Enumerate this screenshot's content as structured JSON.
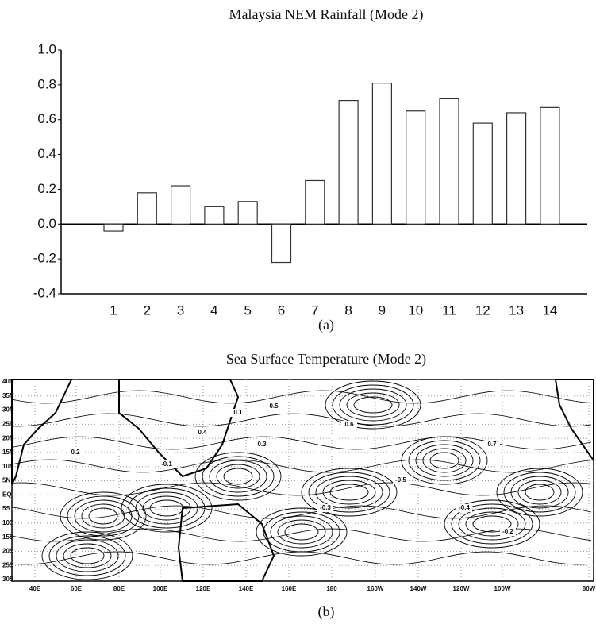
{
  "chart_data": {
    "type": "bar",
    "title": "Malaysia NEM Rainfall (Mode 2)",
    "caption": "(a)",
    "categories": [
      "1",
      "2",
      "3",
      "4",
      "5",
      "6",
      "7",
      "8",
      "9",
      "10",
      "11",
      "12",
      "13",
      "14"
    ],
    "values": [
      -0.04,
      0.18,
      0.22,
      0.1,
      0.13,
      -0.22,
      0.25,
      0.71,
      0.81,
      0.65,
      0.72,
      0.58,
      0.64,
      0.67
    ],
    "color": "#ffffff",
    "ylim": [
      -0.4,
      1.0
    ],
    "yticks": [
      {
        "value": 1.0,
        "label": "1.0"
      },
      0.8,
      0.6,
      0.4,
      0.2,
      {
        "value": 0.0,
        "label": "0.0"
      },
      -0.2,
      -0.4
    ],
    "grid": false
  },
  "panel_b": {
    "title": "Sea Surface Temperature (Mode 2)",
    "caption": "(b)",
    "lat_labels": [
      "40N",
      "35N",
      "30N",
      "25N",
      "20N",
      "15N",
      "10N",
      "5N",
      "EQ",
      "5S",
      "10S",
      "15S",
      "20S",
      "25S",
      "30S"
    ],
    "lon_labels": [
      "40E",
      "60E",
      "80E",
      "100E",
      "120E",
      "140E",
      "160E",
      "180",
      "160W",
      "140W",
      "120W",
      "100W",
      "80W"
    ],
    "contour_labels": [
      "0.2",
      "-0.1",
      "0.6",
      "-0.5",
      "0.3",
      "-0.3",
      "0.1",
      "-0.4",
      "-0.2",
      "0.4",
      "0.7",
      "0.5"
    ]
  }
}
